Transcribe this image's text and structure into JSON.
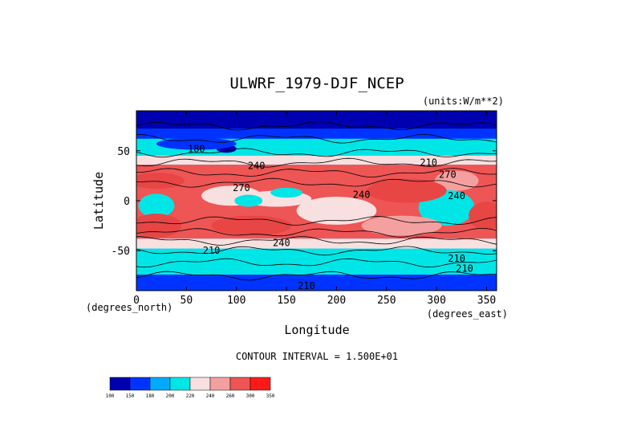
{
  "chart_data": {
    "type": "heatmap",
    "title": "ULWRF_1979-DJF_NCEP",
    "units_label": "(units:W/m**2)",
    "xlabel": "Longitude",
    "ylabel": "Latitude",
    "x_unit_note": "(degrees_east)",
    "y_unit_note": "(degrees_north)",
    "xlim": [
      0,
      360
    ],
    "ylim": [
      -90,
      90
    ],
    "x_ticks": [
      0,
      50,
      100,
      150,
      200,
      250,
      300,
      350
    ],
    "y_ticks": [
      50,
      0,
      -50
    ],
    "contour_interval_text": "CONTOUR INTERVAL = 1.500E+01",
    "contour_labels": [
      {
        "lon": 60,
        "lat": 52,
        "text": "180"
      },
      {
        "lon": 120,
        "lat": 35,
        "text": "240"
      },
      {
        "lon": 105,
        "lat": 13,
        "text": "270"
      },
      {
        "lon": 225,
        "lat": 6,
        "text": "240"
      },
      {
        "lon": 292,
        "lat": 38,
        "text": "210"
      },
      {
        "lon": 311,
        "lat": 26,
        "text": "270"
      },
      {
        "lon": 320,
        "lat": 5,
        "text": "240"
      },
      {
        "lon": 145,
        "lat": -42,
        "text": "240"
      },
      {
        "lon": 75,
        "lat": -50,
        "text": "210"
      },
      {
        "lon": 328,
        "lat": -68,
        "text": "210"
      },
      {
        "lon": 170,
        "lat": -85,
        "text": "210"
      },
      {
        "lon": 320,
        "lat": -58,
        "text": "210"
      }
    ],
    "colorbar": {
      "ticks": [
        "100",
        "150",
        "180",
        "200",
        "220",
        "240",
        "260",
        "300",
        "350"
      ],
      "colors": [
        "#0000b0",
        "#0033ff",
        "#00aaff",
        "#00e6e6",
        "#f8e0e0",
        "#f4a0a0",
        "#ee5555",
        "#ff1a1a"
      ]
    }
  }
}
